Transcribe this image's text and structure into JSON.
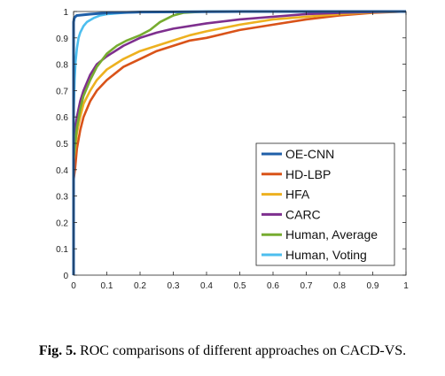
{
  "chart_data": {
    "type": "line",
    "title": "",
    "xlabel": "",
    "ylabel": "",
    "xlim": [
      0,
      1
    ],
    "ylim": [
      0,
      1
    ],
    "xticks": [
      "0",
      "0.1",
      "0.2",
      "0.3",
      "0.4",
      "0.5",
      "0.6",
      "0.7",
      "0.8",
      "0.9",
      "1"
    ],
    "yticks": [
      "0",
      "0.1",
      "0.2",
      "0.3",
      "0.4",
      "0.5",
      "0.6",
      "0.7",
      "0.8",
      "0.9",
      "1"
    ],
    "grid": false,
    "legend_position": "bottom-right",
    "series": [
      {
        "name": "OE-CNN",
        "color": "#1f5fa8",
        "x": [
          0,
          0.0,
          0.002,
          0.005,
          0.01,
          0.05,
          0.1,
          0.2,
          0.5,
          1.0
        ],
        "y": [
          0,
          0.96,
          0.975,
          0.98,
          0.985,
          0.99,
          0.995,
          0.998,
          1.0,
          1.0
        ]
      },
      {
        "name": "HD-LBP",
        "color": "#d95319",
        "x": [
          0,
          0.0,
          0.005,
          0.01,
          0.02,
          0.03,
          0.05,
          0.07,
          0.1,
          0.15,
          0.2,
          0.25,
          0.3,
          0.35,
          0.4,
          0.45,
          0.5,
          0.6,
          0.7,
          0.8,
          0.9,
          1.0
        ],
        "y": [
          0,
          0.36,
          0.41,
          0.48,
          0.55,
          0.6,
          0.66,
          0.7,
          0.74,
          0.79,
          0.82,
          0.85,
          0.87,
          0.89,
          0.9,
          0.915,
          0.93,
          0.95,
          0.97,
          0.985,
          0.995,
          1.0
        ]
      },
      {
        "name": "HFA",
        "color": "#edb120",
        "x": [
          0,
          0.0,
          0.005,
          0.01,
          0.02,
          0.03,
          0.05,
          0.07,
          0.1,
          0.15,
          0.2,
          0.25,
          0.3,
          0.35,
          0.4,
          0.5,
          0.6,
          0.7,
          0.8,
          0.9,
          1.0
        ],
        "y": [
          0,
          0.43,
          0.48,
          0.54,
          0.6,
          0.65,
          0.7,
          0.74,
          0.78,
          0.82,
          0.85,
          0.87,
          0.89,
          0.91,
          0.925,
          0.95,
          0.97,
          0.98,
          0.99,
          0.997,
          1.0
        ]
      },
      {
        "name": "CARC",
        "color": "#7e2f8e",
        "x": [
          0,
          0.0,
          0.005,
          0.01,
          0.02,
          0.03,
          0.05,
          0.07,
          0.1,
          0.15,
          0.2,
          0.25,
          0.3,
          0.4,
          0.5,
          0.6,
          0.7,
          0.8,
          0.9,
          1.0
        ],
        "y": [
          0,
          0.48,
          0.55,
          0.6,
          0.66,
          0.7,
          0.76,
          0.8,
          0.83,
          0.87,
          0.9,
          0.92,
          0.935,
          0.955,
          0.97,
          0.98,
          0.99,
          0.995,
          0.998,
          1.0
        ]
      },
      {
        "name": "Human, Average",
        "color": "#77ac30",
        "x": [
          0,
          0.0,
          0.005,
          0.01,
          0.02,
          0.03,
          0.05,
          0.07,
          0.1,
          0.13,
          0.16,
          0.2,
          0.23,
          0.26,
          0.3,
          0.33,
          0.4,
          0.6,
          1.0
        ],
        "y": [
          0,
          0.44,
          0.5,
          0.56,
          0.63,
          0.68,
          0.74,
          0.79,
          0.84,
          0.87,
          0.89,
          0.91,
          0.93,
          0.96,
          0.985,
          0.995,
          1.0,
          1.0,
          1.0
        ]
      },
      {
        "name": "Human, Voting",
        "color": "#4dbeee",
        "x": [
          0,
          0.0,
          0.003,
          0.006,
          0.01,
          0.015,
          0.02,
          0.03,
          0.04,
          0.06,
          0.08,
          0.1,
          0.15,
          0.2,
          0.4,
          1.0
        ],
        "y": [
          0,
          0.6,
          0.74,
          0.81,
          0.86,
          0.9,
          0.92,
          0.945,
          0.96,
          0.975,
          0.985,
          0.99,
          0.995,
          0.998,
          1.0,
          1.0
        ]
      }
    ]
  },
  "caption": {
    "label": "Fig. 5.",
    "text": " ROC comparisons of different approaches on CACD-VS."
  }
}
